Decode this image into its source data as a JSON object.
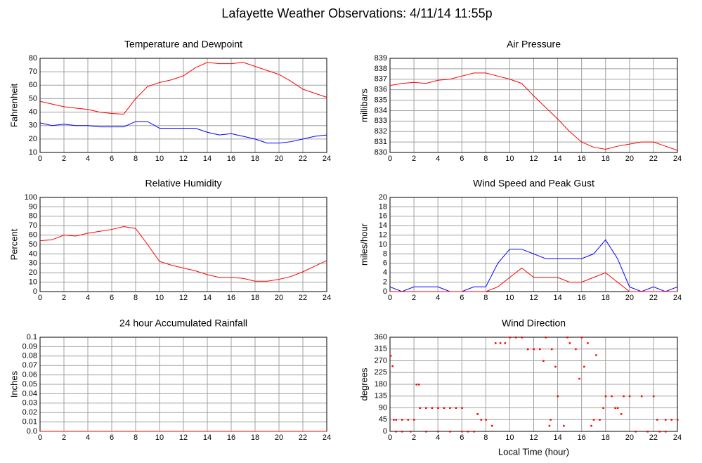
{
  "title": "Lafayette Weather Observations: 4/11/14 11:55p",
  "chart_data": [
    {
      "type": "line",
      "title": "Temperature and Dewpoint",
      "ylabel": "Fahrenheit",
      "x": [
        0,
        1,
        2,
        3,
        4,
        5,
        6,
        7,
        8,
        9,
        10,
        11,
        12,
        13,
        14,
        15,
        16,
        17,
        18,
        19,
        20,
        21,
        22,
        23,
        24
      ],
      "series": [
        {
          "color": "#ff0000",
          "values": [
            48,
            46,
            44,
            43,
            42,
            40,
            39,
            38.5,
            50,
            59,
            62,
            64,
            67,
            73,
            77,
            76,
            76,
            77,
            74,
            71,
            68,
            63,
            57,
            54,
            51
          ]
        },
        {
          "color": "#0000ff",
          "values": [
            32,
            30,
            31,
            30,
            30,
            29,
            29,
            29,
            33,
            33,
            28,
            28,
            28,
            28,
            25,
            23,
            24,
            22,
            20,
            17,
            17,
            18,
            20,
            22,
            23
          ]
        }
      ],
      "xlim": [
        0,
        24
      ],
      "xticks": [
        0,
        2,
        4,
        6,
        8,
        10,
        12,
        14,
        16,
        18,
        20,
        22,
        24
      ],
      "ylim": [
        10,
        80
      ],
      "yticks": [
        10,
        20,
        30,
        40,
        50,
        60,
        70,
        80
      ],
      "grid": true
    },
    {
      "type": "line",
      "title": "Air Pressure",
      "ylabel": "millibars",
      "x": [
        0,
        1,
        2,
        3,
        4,
        5,
        6,
        7,
        8,
        9,
        10,
        11,
        12,
        13,
        14,
        15,
        16,
        17,
        18,
        19,
        20,
        21,
        22,
        23,
        24
      ],
      "series": [
        {
          "color": "#ff0000",
          "values": [
            836.4,
            836.6,
            836.7,
            836.6,
            836.9,
            837.0,
            837.3,
            837.6,
            837.6,
            837.3,
            837.0,
            836.6,
            835.4,
            834.3,
            833.2,
            832.0,
            831.0,
            830.5,
            830.3,
            830.6,
            830.8,
            831.0,
            831.0,
            830.6,
            830.2
          ]
        }
      ],
      "xlim": [
        0,
        24
      ],
      "xticks": [
        0,
        2,
        4,
        6,
        8,
        10,
        12,
        14,
        16,
        18,
        20,
        22,
        24
      ],
      "ylim": [
        830,
        839
      ],
      "yticks": [
        830,
        831,
        832,
        833,
        834,
        835,
        836,
        837,
        838,
        839
      ],
      "grid": true
    },
    {
      "type": "line",
      "title": "Relative Humidity",
      "ylabel": "Percent",
      "x": [
        0,
        1,
        2,
        3,
        4,
        5,
        6,
        7,
        8,
        9,
        10,
        11,
        12,
        13,
        14,
        15,
        16,
        17,
        18,
        19,
        20,
        21,
        22,
        23,
        24
      ],
      "series": [
        {
          "color": "#ff0000",
          "values": [
            54,
            55,
            60,
            59,
            62,
            64,
            66,
            69,
            67,
            50,
            32,
            28,
            25,
            22,
            18,
            15,
            15,
            14,
            11,
            11,
            13,
            16,
            21,
            27,
            33
          ]
        }
      ],
      "xlim": [
        0,
        24
      ],
      "xticks": [
        0,
        2,
        4,
        6,
        8,
        10,
        12,
        14,
        16,
        18,
        20,
        22,
        24
      ],
      "ylim": [
        0,
        100
      ],
      "yticks": [
        0,
        10,
        20,
        30,
        40,
        50,
        60,
        70,
        80,
        90,
        100
      ],
      "grid": true
    },
    {
      "type": "line",
      "title": "Wind Speed and Peak Gust",
      "ylabel": "miles/hour",
      "x": [
        0,
        1,
        2,
        3,
        4,
        5,
        6,
        7,
        8,
        9,
        10,
        11,
        12,
        13,
        14,
        15,
        16,
        17,
        18,
        19,
        20,
        21,
        22,
        23,
        24
      ],
      "series": [
        {
          "color": "#0000ff",
          "values": [
            1,
            0,
            1,
            1,
            1,
            0,
            0,
            1,
            1,
            6,
            9,
            9,
            8,
            7,
            7,
            7,
            7,
            8,
            11,
            7,
            1,
            0,
            1,
            0,
            1
          ]
        },
        {
          "color": "#ff0000",
          "values": [
            0,
            0,
            0,
            0,
            0,
            0,
            0,
            0,
            0,
            1,
            3,
            5,
            3,
            3,
            3,
            2,
            2,
            3,
            4,
            2,
            0,
            0,
            0,
            0,
            0
          ]
        }
      ],
      "xlim": [
        0,
        24
      ],
      "xticks": [
        0,
        2,
        4,
        6,
        8,
        10,
        12,
        14,
        16,
        18,
        20,
        22,
        24
      ],
      "ylim": [
        0,
        20
      ],
      "yticks": [
        0,
        2,
        4,
        6,
        8,
        10,
        12,
        14,
        16,
        18,
        20
      ],
      "grid": true
    },
    {
      "type": "line",
      "title": "24 hour Accumulated Rainfall",
      "ylabel": "Inches",
      "x": [
        0,
        24
      ],
      "series": [
        {
          "color": "#ff0000",
          "values": [
            0,
            0
          ]
        }
      ],
      "xlim": [
        0,
        24
      ],
      "xticks": [
        0,
        2,
        4,
        6,
        8,
        10,
        12,
        14,
        16,
        18,
        20,
        22,
        24
      ],
      "ylim": [
        0,
        0.1
      ],
      "yticks": [
        {
          "value": 0,
          "label": "0.0"
        },
        0.01,
        0.02,
        0.03,
        0.04,
        0.05,
        0.06,
        0.07,
        0.08,
        0.09,
        0.1
      ],
      "grid": true
    },
    {
      "type": "scatter",
      "title": "Wind Direction",
      "ylabel": "degrees",
      "xlabel": "Local Time (hour)",
      "x": [
        0.05,
        0.2,
        0.3,
        0.5,
        1,
        1.5,
        2,
        0.5,
        1,
        1.7,
        2.2,
        2.4,
        2.5,
        3,
        3.5,
        4,
        4.5,
        5,
        5.5,
        6,
        3,
        4,
        5,
        6,
        6.5,
        7,
        7.3,
        7.6,
        8,
        8.5,
        8.8,
        9.2,
        9.6,
        10,
        10.5,
        11,
        11.5,
        12,
        12.5,
        12.8,
        13,
        13.5,
        13.8,
        14,
        13.4,
        13.3,
        14.5,
        14.8,
        15,
        15.5,
        15.8,
        16,
        16.2,
        16.5,
        16.8,
        17,
        17.2,
        17.5,
        17.8,
        18,
        18.5,
        18.8,
        19,
        19.3,
        19.5,
        20,
        20.5,
        21,
        21.5,
        22,
        22.3,
        23,
        23.5,
        24,
        22.5,
        23
      ],
      "series": [
        {
          "color": "#ff0000",
          "values": [
            290,
            250,
            45,
            45,
            45,
            45,
            45,
            0,
            0,
            0,
            180,
            180,
            90,
            90,
            90,
            90,
            90,
            90,
            90,
            90,
            0,
            0,
            0,
            0,
            0,
            0,
            67,
            45,
            45,
            22,
            338,
            338,
            338,
            360,
            360,
            360,
            315,
            315,
            315,
            270,
            360,
            315,
            248,
            135,
            45,
            22,
            22,
            360,
            338,
            315,
            202,
            360,
            248,
            338,
            22,
            45,
            292,
            45,
            90,
            135,
            135,
            90,
            90,
            67,
            135,
            135,
            0,
            135,
            0,
            135,
            45,
            45,
            45,
            45,
            0,
            0
          ]
        }
      ],
      "xlim": [
        0,
        24
      ],
      "xticks": [
        0,
        2,
        4,
        6,
        8,
        10,
        12,
        14,
        16,
        18,
        20,
        22,
        24
      ],
      "ylim": [
        0,
        360
      ],
      "yticks": [
        0,
        45,
        90,
        135,
        180,
        225,
        270,
        315,
        360
      ],
      "grid": true
    }
  ]
}
